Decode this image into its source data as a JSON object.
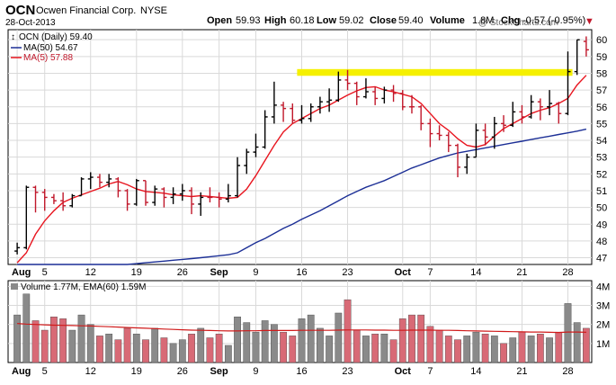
{
  "header": {
    "symbol": "OCN",
    "company": "Ocwen Financial Corp.",
    "exchange": "NYSE",
    "date": "28-Oct-2013",
    "open_label": "Open",
    "open": "59.93",
    "high_label": "High",
    "high": "60.18",
    "low_label": "Low",
    "low": "59.02",
    "close_label": "Close",
    "close": "59.40",
    "volume_label": "Volume",
    "volume": "1.8M",
    "chg_label": "Chg",
    "chg": "-0.57 (-0.95%)",
    "chg_arrow": "▼",
    "watermark": "@ StockCharts.com"
  },
  "colors": {
    "ma50": "#1c2f96",
    "ma5": "#e8151f",
    "bar_up": "#000000",
    "bar_down": "#c0172a",
    "vol_up": "#8a8a8a",
    "vol_down": "#d86a76",
    "ema_vol": "#d01b1b",
    "highlight": "#f5f000",
    "grid": "#d9d9d9"
  },
  "chart_data": [
    {
      "type": "ohlc",
      "legend": {
        "symbol_entry": "OCN (Daily) 59.40",
        "ma50_entry": "MA(50) 54.67",
        "ma5_entry": "MA(5) 57.88"
      },
      "y_ticks": [
        47,
        48,
        49,
        50,
        51,
        52,
        53,
        54,
        55,
        56,
        57,
        58,
        59,
        60
      ],
      "ylim": [
        46.6,
        60.6
      ],
      "x_ticks": [
        {
          "label": "Aug",
          "index": 0,
          "bold": true
        },
        {
          "label": "5",
          "index": 3,
          "bold": false
        },
        {
          "label": "12",
          "index": 8,
          "bold": false
        },
        {
          "label": "19",
          "index": 13,
          "bold": false
        },
        {
          "label": "26",
          "index": 18,
          "bold": false
        },
        {
          "label": "Sep",
          "index": 22,
          "bold": true
        },
        {
          "label": "9",
          "index": 26,
          "bold": false
        },
        {
          "label": "16",
          "index": 31,
          "bold": false
        },
        {
          "label": "23",
          "index": 36,
          "bold": false
        },
        {
          "label": "Oct",
          "index": 42,
          "bold": true
        },
        {
          "label": "7",
          "index": 45,
          "bold": false
        },
        {
          "label": "14",
          "index": 50,
          "bold": false
        },
        {
          "label": "21",
          "index": 55,
          "bold": false
        },
        {
          "label": "28",
          "index": 60,
          "bold": false
        }
      ],
      "highlight_band": {
        "start_index": 31,
        "end_index": 60,
        "y_low": 57.85,
        "y_high": 58.25
      },
      "ohlc": [
        [
          47.4,
          47.9,
          47.2,
          47.6,
          true
        ],
        [
          47.6,
          51.3,
          47.5,
          51.2,
          true
        ],
        [
          51.2,
          51.3,
          49.7,
          50.9,
          false
        ],
        [
          50.9,
          51.1,
          49.8,
          50.6,
          false
        ],
        [
          50.6,
          50.8,
          50.2,
          50.4,
          false
        ],
        [
          50.4,
          50.9,
          49.8,
          50.1,
          false
        ],
        [
          50.1,
          50.8,
          50.0,
          50.7,
          true
        ],
        [
          50.7,
          51.8,
          50.7,
          51.7,
          true
        ],
        [
          51.7,
          52.1,
          51.1,
          51.8,
          true
        ],
        [
          51.8,
          52.0,
          51.2,
          51.5,
          false
        ],
        [
          51.5,
          52.0,
          51.2,
          51.7,
          true
        ],
        [
          51.7,
          51.8,
          50.6,
          51.0,
          false
        ],
        [
          51.0,
          51.1,
          49.8,
          50.2,
          false
        ],
        [
          50.2,
          51.7,
          50.1,
          51.6,
          true
        ],
        [
          51.6,
          51.6,
          50.1,
          50.3,
          false
        ],
        [
          50.3,
          51.3,
          50.1,
          51.1,
          true
        ],
        [
          51.1,
          51.2,
          50.0,
          50.6,
          false
        ],
        [
          50.6,
          51.2,
          50.2,
          50.8,
          true
        ],
        [
          50.8,
          51.4,
          50.4,
          51.0,
          true
        ],
        [
          51.0,
          51.2,
          49.6,
          50.2,
          false
        ],
        [
          50.2,
          50.9,
          49.5,
          50.6,
          true
        ],
        [
          50.6,
          51.2,
          50.3,
          50.6,
          false
        ],
        [
          50.6,
          50.9,
          50.0,
          50.5,
          false
        ],
        [
          50.5,
          51.4,
          50.3,
          50.7,
          true
        ],
        [
          50.7,
          53.0,
          50.6,
          52.5,
          true
        ],
        [
          52.5,
          53.5,
          52.0,
          53.3,
          true
        ],
        [
          53.3,
          54.4,
          53.0,
          53.6,
          true
        ],
        [
          53.6,
          55.8,
          53.5,
          55.4,
          true
        ],
        [
          55.4,
          57.5,
          55.0,
          56.1,
          true
        ],
        [
          56.1,
          56.3,
          55.1,
          55.9,
          false
        ],
        [
          55.9,
          56.2,
          55.0,
          55.2,
          false
        ],
        [
          55.2,
          56.1,
          55.0,
          55.3,
          true
        ],
        [
          55.3,
          56.2,
          55.1,
          56.0,
          true
        ],
        [
          56.0,
          56.6,
          55.6,
          56.3,
          true
        ],
        [
          56.3,
          57.1,
          55.7,
          56.4,
          true
        ],
        [
          56.4,
          58.1,
          56.3,
          57.6,
          true
        ],
        [
          57.6,
          58.2,
          57.0,
          57.4,
          false
        ],
        [
          57.4,
          57.5,
          56.1,
          56.6,
          false
        ],
        [
          56.6,
          57.7,
          56.5,
          56.9,
          true
        ],
        [
          56.9,
          57.2,
          56.1,
          56.5,
          false
        ],
        [
          56.5,
          57.2,
          56.2,
          57.0,
          true
        ],
        [
          57.0,
          57.3,
          56.3,
          56.8,
          false
        ],
        [
          56.8,
          57.0,
          55.8,
          56.0,
          false
        ],
        [
          56.0,
          56.7,
          55.6,
          56.0,
          false
        ],
        [
          56.0,
          56.1,
          54.6,
          55.0,
          false
        ],
        [
          55.0,
          55.3,
          53.6,
          54.4,
          false
        ],
        [
          54.4,
          54.9,
          54.0,
          54.3,
          false
        ],
        [
          54.3,
          54.5,
          53.3,
          53.7,
          false
        ],
        [
          53.7,
          53.8,
          51.8,
          52.4,
          false
        ],
        [
          52.4,
          53.2,
          52.0,
          53.0,
          true
        ],
        [
          53.0,
          55.0,
          53.0,
          54.6,
          true
        ],
        [
          54.6,
          55.0,
          53.7,
          54.2,
          false
        ],
        [
          54.2,
          55.4,
          53.5,
          55.0,
          true
        ],
        [
          55.0,
          55.5,
          54.5,
          54.9,
          false
        ],
        [
          54.9,
          56.3,
          54.8,
          55.7,
          true
        ],
        [
          55.7,
          56.1,
          55.0,
          55.4,
          false
        ],
        [
          55.4,
          56.7,
          55.3,
          56.3,
          true
        ],
        [
          56.3,
          56.5,
          55.2,
          56.0,
          false
        ],
        [
          56.0,
          57.0,
          55.5,
          56.2,
          true
        ],
        [
          56.2,
          56.3,
          55.0,
          55.6,
          false
        ],
        [
          55.6,
          59.3,
          55.5,
          58.1,
          true
        ],
        [
          58.1,
          60.0,
          57.9,
          60.0,
          true
        ],
        [
          59.9,
          60.2,
          59.0,
          59.4,
          false
        ]
      ],
      "ma50": [
        46.0,
        46.05,
        46.1,
        46.15,
        46.2,
        46.25,
        46.3,
        46.35,
        46.4,
        46.45,
        46.5,
        46.55,
        46.6,
        46.65,
        46.7,
        46.75,
        46.8,
        46.85,
        46.9,
        46.95,
        47.0,
        47.06,
        47.12,
        47.18,
        47.3,
        47.6,
        47.9,
        48.15,
        48.45,
        48.75,
        49.0,
        49.3,
        49.55,
        49.8,
        50.1,
        50.4,
        50.7,
        50.95,
        51.2,
        51.4,
        51.6,
        51.85,
        52.1,
        52.35,
        52.55,
        52.75,
        52.95,
        53.1,
        53.25,
        53.35,
        53.45,
        53.55,
        53.65,
        53.75,
        53.85,
        53.95,
        54.05,
        54.15,
        54.25,
        54.35,
        54.45,
        54.55,
        54.67
      ],
      "ma5": [
        46.7,
        47.3,
        48.4,
        49.2,
        49.8,
        50.3,
        50.55,
        50.75,
        50.95,
        51.15,
        51.4,
        51.55,
        51.35,
        51.1,
        50.95,
        50.9,
        50.85,
        50.75,
        50.7,
        50.65,
        50.7,
        50.65,
        50.6,
        50.55,
        50.6,
        51.1,
        51.9,
        52.8,
        53.7,
        54.5,
        55.0,
        55.3,
        55.6,
        55.9,
        56.1,
        56.4,
        56.7,
        56.95,
        57.15,
        57.2,
        57.0,
        56.9,
        56.75,
        56.6,
        56.2,
        55.6,
        55.0,
        54.6,
        54.1,
        53.7,
        53.6,
        53.75,
        54.25,
        54.7,
        55.0,
        55.3,
        55.6,
        55.8,
        55.95,
        56.2,
        56.5,
        57.3,
        57.88
      ]
    },
    {
      "type": "bar",
      "legend": {
        "entry": "Volume 1.77M, EMA(60) 1.59M"
      },
      "y_ticks": [
        {
          "label": "1M",
          "value": 1
        },
        {
          "label": "2M",
          "value": 2
        },
        {
          "label": "3M",
          "value": 3
        },
        {
          "label": "4M",
          "value": 4
        }
      ],
      "ylim": [
        0,
        4.3
      ],
      "values": [
        2.5,
        3.6,
        2.2,
        1.7,
        2.4,
        2.3,
        1.7,
        2.5,
        2.0,
        1.4,
        1.5,
        1.2,
        1.8,
        1.5,
        1.2,
        1.8,
        1.3,
        1.0,
        1.2,
        1.5,
        1.8,
        1.3,
        1.5,
        0.9,
        2.4,
        2.1,
        1.6,
        2.2,
        2.0,
        1.6,
        1.4,
        2.3,
        2.5,
        1.8,
        1.4,
        2.6,
        3.3,
        1.7,
        1.4,
        1.5,
        1.5,
        1.2,
        2.3,
        2.5,
        2.5,
        1.9,
        1.7,
        1.4,
        1.2,
        1.4,
        1.6,
        1.5,
        1.4,
        1.0,
        1.3,
        1.6,
        1.4,
        1.5,
        1.3,
        1.6,
        3.1,
        2.1,
        1.8
      ],
      "ema": [
        2.05,
        2.02,
        2.0,
        1.98,
        1.96,
        1.95,
        1.94,
        1.93,
        1.92,
        1.9,
        1.88,
        1.86,
        1.84,
        1.82,
        1.8,
        1.78,
        1.76,
        1.74,
        1.72,
        1.7,
        1.69,
        1.68,
        1.67,
        1.66,
        1.66,
        1.67,
        1.67,
        1.68,
        1.68,
        1.68,
        1.68,
        1.69,
        1.69,
        1.69,
        1.69,
        1.7,
        1.71,
        1.71,
        1.71,
        1.7,
        1.7,
        1.69,
        1.69,
        1.7,
        1.7,
        1.7,
        1.69,
        1.69,
        1.68,
        1.67,
        1.66,
        1.65,
        1.64,
        1.63,
        1.62,
        1.61,
        1.6,
        1.6,
        1.59,
        1.58,
        1.6,
        1.6,
        1.59
      ]
    }
  ]
}
